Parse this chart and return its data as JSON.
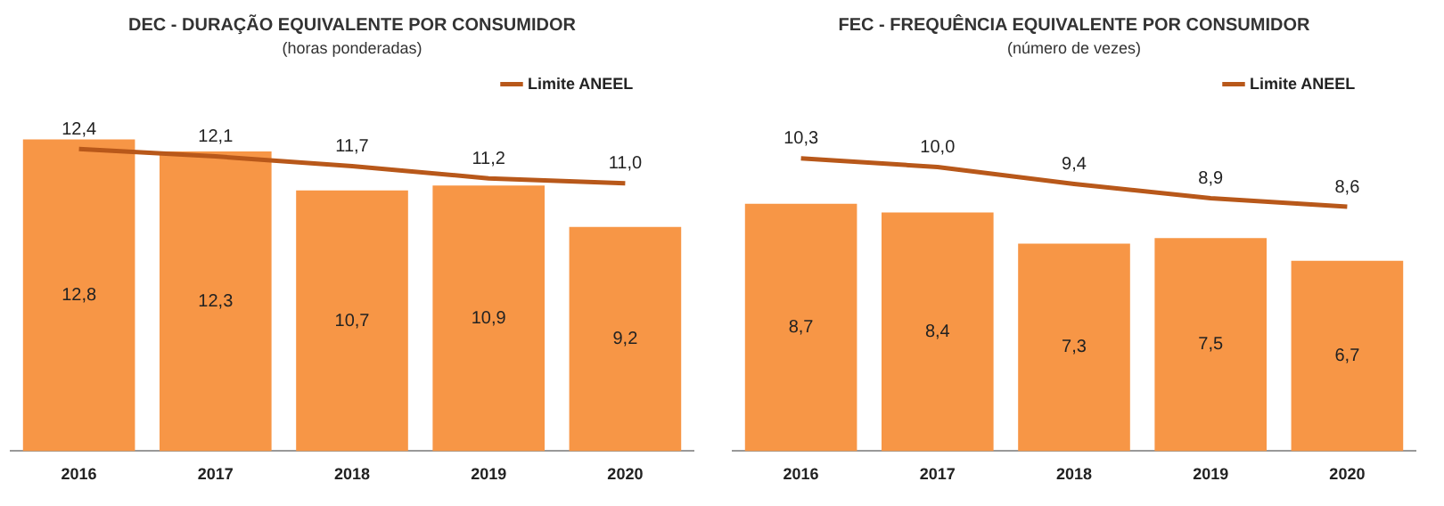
{
  "chart_data": [
    {
      "type": "bar",
      "title": "DEC - DURAÇÃO EQUIVALENTE POR CONSUMIDOR",
      "subtitle": "(horas ponderadas)",
      "categories": [
        "2016",
        "2017",
        "2018",
        "2019",
        "2020"
      ],
      "legend": "top right",
      "series": [
        {
          "color": "#f79646",
          "values": [
            12.8,
            12.3,
            10.7,
            10.9,
            9.2
          ],
          "value_labels": [
            "12,8",
            "12,3",
            "10,7",
            "10,9",
            "9,2"
          ]
        },
        {
          "type": "line",
          "name": "Limite ANEEL",
          "color": "#b8581a",
          "values": [
            12.4,
            12.1,
            11.7,
            11.2,
            11.0
          ],
          "value_labels": [
            "12,4",
            "12,1",
            "11,7",
            "11,2",
            "11,0"
          ]
        }
      ]
    },
    {
      "type": "bar",
      "title": "FEC - FREQUÊNCIA EQUIVALENTE POR CONSUMIDOR",
      "subtitle": "(número de vezes)",
      "categories": [
        "2016",
        "2017",
        "2018",
        "2019",
        "2020"
      ],
      "legend": "top right",
      "series": [
        {
          "color": "#f79646",
          "values": [
            8.7,
            8.4,
            7.3,
            7.5,
            6.7
          ],
          "value_labels": [
            "8,7",
            "8,4",
            "7,3",
            "7,5",
            "6,7"
          ]
        },
        {
          "type": "line",
          "name": "Limite ANEEL",
          "color": "#b8581a",
          "values": [
            10.3,
            10.0,
            9.4,
            8.9,
            8.6
          ],
          "value_labels": [
            "10,3",
            "10,0",
            "9,4",
            "8,9",
            "8,6"
          ]
        }
      ]
    }
  ]
}
